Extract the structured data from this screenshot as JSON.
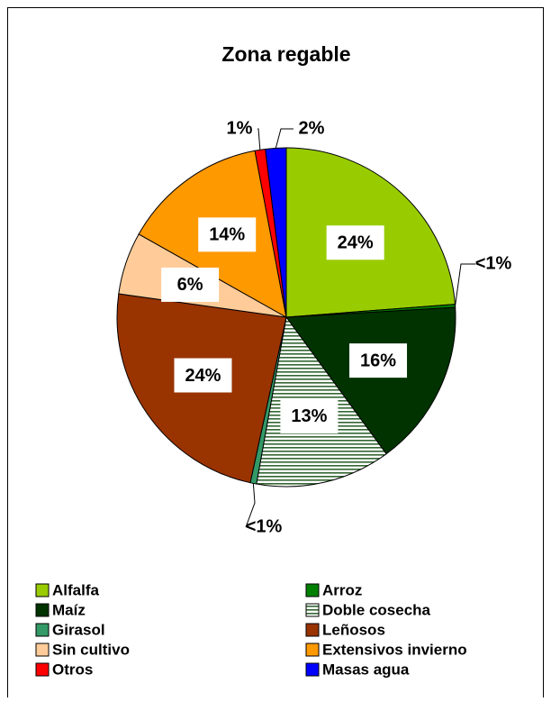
{
  "chart_data": {
    "type": "pie",
    "title": "Zona regable",
    "categories": [
      "Alfalfa",
      "Arroz",
      "Maíz",
      "Doble cosecha",
      "Girasol",
      "Leñosos",
      "Sin cultivo",
      "Extensivos invierno",
      "Otros",
      "Masas agua"
    ],
    "values": [
      24,
      0.3,
      16,
      13,
      0.6,
      24,
      6,
      14,
      1,
      2
    ],
    "value_labels": [
      "24%",
      "<1%",
      "16%",
      "13%",
      "<1%",
      "24%",
      "6%",
      "14%",
      "1%",
      "2%"
    ],
    "colors": [
      "#99cc00",
      "#008000",
      "#003300",
      "hatch",
      "#339966",
      "#993300",
      "#ffcc99",
      "#ff9900",
      "#ff0000",
      "#0000ff"
    ],
    "legend": "bottom"
  }
}
